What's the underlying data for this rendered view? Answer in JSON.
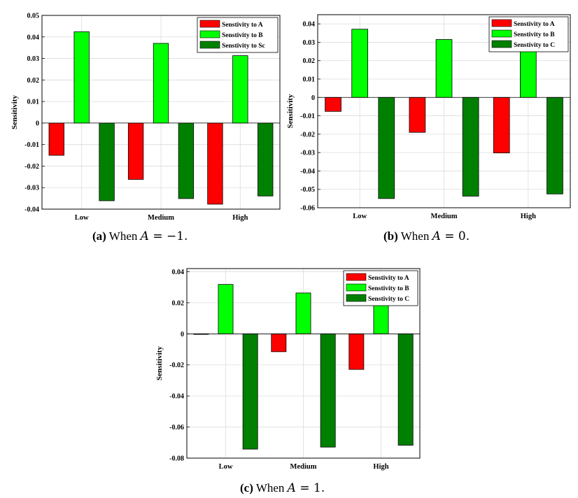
{
  "chart_data": [
    {
      "id": "a",
      "type": "bar",
      "categories": [
        "Low",
        "Medium",
        "High"
      ],
      "series": [
        {
          "name": "Senstivity to A",
          "color": "#ff0000",
          "values": [
            -0.015,
            -0.0262,
            -0.0377
          ]
        },
        {
          "name": "Senstivity to B",
          "color": "#00ff00",
          "values": [
            0.0424,
            0.037,
            0.0313
          ]
        },
        {
          "name": "Senstivity to Sc",
          "color": "#008000",
          "values": [
            -0.0361,
            -0.0351,
            -0.0339
          ]
        }
      ],
      "ylabel": "Sensitivity",
      "ylim": [
        -0.04,
        0.05
      ],
      "yticks": [
        -0.04,
        -0.03,
        -0.02,
        -0.01,
        0,
        0.01,
        0.02,
        0.03,
        0.04,
        0.05
      ],
      "ytick_labels": [
        "-0.04",
        "-0.03",
        "-0.02",
        "-0.01",
        "0",
        "0.01",
        "0.02",
        "0.03",
        "0.04",
        "0.05"
      ],
      "grid": true,
      "legend": "top-right"
    },
    {
      "id": "b",
      "type": "bar",
      "categories": [
        "Low",
        "Medium",
        "High"
      ],
      "series": [
        {
          "name": "Senstivity to A",
          "color": "#ff0000",
          "values": [
            -0.0076,
            -0.019,
            -0.0302
          ]
        },
        {
          "name": "Senstivity to B",
          "color": "#00ff00",
          "values": [
            0.0371,
            0.0315,
            0.026
          ]
        },
        {
          "name": "Senstivity to C",
          "color": "#008000",
          "values": [
            -0.055,
            -0.0537,
            -0.0525
          ]
        }
      ],
      "ylabel": "Sensitivity",
      "ylim": [
        -0.06,
        0.045
      ],
      "yticks": [
        -0.06,
        -0.05,
        -0.04,
        -0.03,
        -0.02,
        -0.01,
        0,
        0.01,
        0.02,
        0.03,
        0.04
      ],
      "ytick_labels": [
        "-0.06",
        "-0.05",
        "-0.04",
        "-0.03",
        "-0.02",
        "-0.01",
        "0",
        "0.01",
        "0.02",
        "0.03",
        "0.04"
      ],
      "grid": true,
      "legend": "top-right"
    },
    {
      "id": "c",
      "type": "bar",
      "categories": [
        "Low",
        "Medium",
        "High"
      ],
      "series": [
        {
          "name": "Senstivity to A",
          "color": "#ff0000",
          "values": [
            -0.0003,
            -0.0115,
            -0.0229
          ]
        },
        {
          "name": "Senstivity to B",
          "color": "#00ff00",
          "values": [
            0.0318,
            0.0263,
            0.0206
          ]
        },
        {
          "name": "Senstivity to C",
          "color": "#008000",
          "values": [
            -0.0742,
            -0.0729,
            -0.0717
          ]
        }
      ],
      "ylabel": "Sensitivity",
      "ylim": [
        -0.08,
        0.042
      ],
      "yticks": [
        -0.08,
        -0.06,
        -0.04,
        -0.02,
        0,
        0.02,
        0.04
      ],
      "ytick_labels": [
        "-0.08",
        "-0.06",
        "-0.04",
        "-0.02",
        "0",
        "0.02",
        "0.04"
      ],
      "grid": true,
      "legend": "top-right"
    }
  ],
  "captions": {
    "a": {
      "label": "(a)",
      "text": "When",
      "var": "A",
      "eq": "=",
      "val": "−1."
    },
    "b": {
      "label": "(b)",
      "text": "When",
      "var": "A",
      "eq": "=",
      "val": "0."
    },
    "c": {
      "label": "(c)",
      "text": "When",
      "var": "A",
      "eq": "=",
      "val": "1."
    }
  }
}
